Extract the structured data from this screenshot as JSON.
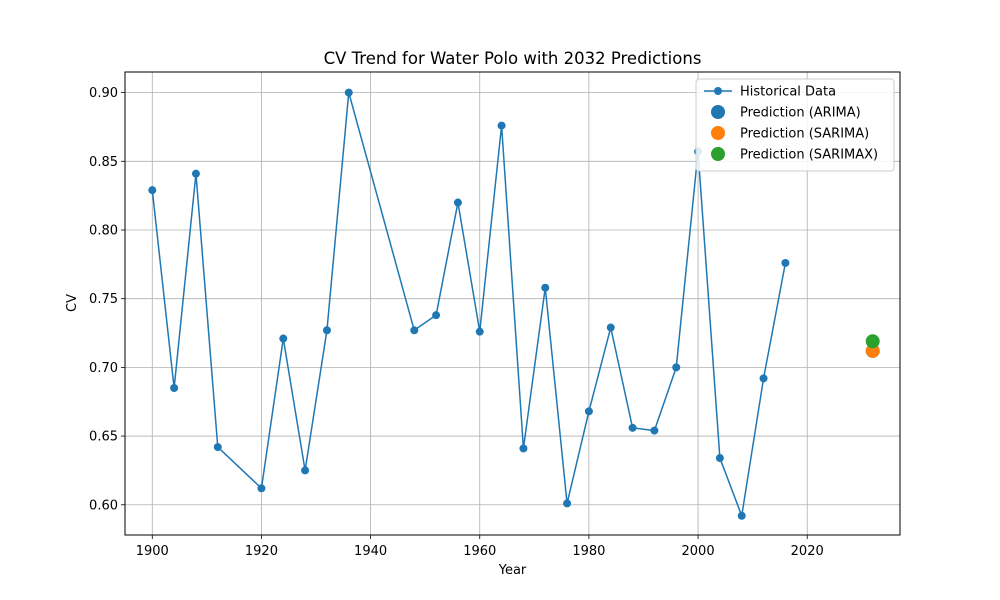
{
  "chart_data": {
    "type": "line",
    "title": "CV Trend for Water Polo with 2032 Predictions",
    "xlabel": "Year",
    "ylabel": "CV",
    "xlim": [
      1895,
      2037
    ],
    "ylim": [
      0.578,
      0.915
    ],
    "x_ticks": [
      1900,
      1920,
      1940,
      1960,
      1980,
      2000,
      2020
    ],
    "y_ticks": [
      0.6,
      0.65,
      0.7,
      0.75,
      0.8,
      0.85,
      0.9
    ],
    "grid": true,
    "legend_position": "top-right",
    "series": [
      {
        "name": "Historical Data",
        "kind": "line+markers",
        "color": "#1f77b4",
        "x": [
          1900,
          1904,
          1908,
          1912,
          1920,
          1924,
          1928,
          1932,
          1936,
          1948,
          1952,
          1956,
          1960,
          1964,
          1968,
          1972,
          1976,
          1980,
          1984,
          1988,
          1992,
          1996,
          2000,
          2004,
          2008,
          2012,
          2016
        ],
        "y": [
          0.829,
          0.685,
          0.841,
          0.642,
          0.612,
          0.721,
          0.625,
          0.727,
          0.9,
          0.727,
          0.738,
          0.82,
          0.726,
          0.876,
          0.641,
          0.758,
          0.601,
          0.668,
          0.729,
          0.656,
          0.654,
          0.7,
          0.857,
          0.634,
          0.592,
          0.692,
          0.776
        ]
      },
      {
        "name": "Prediction (ARIMA)",
        "kind": "point",
        "color": "#1f77b4",
        "x": [
          2032
        ],
        "y": [
          0.712
        ]
      },
      {
        "name": "Prediction (SARIMA)",
        "kind": "point",
        "color": "#ff7f0e",
        "x": [
          2032
        ],
        "y": [
          0.712
        ]
      },
      {
        "name": "Prediction (SARIMAX)",
        "kind": "point",
        "color": "#2ca02c",
        "x": [
          2032
        ],
        "y": [
          0.719
        ]
      }
    ]
  }
}
